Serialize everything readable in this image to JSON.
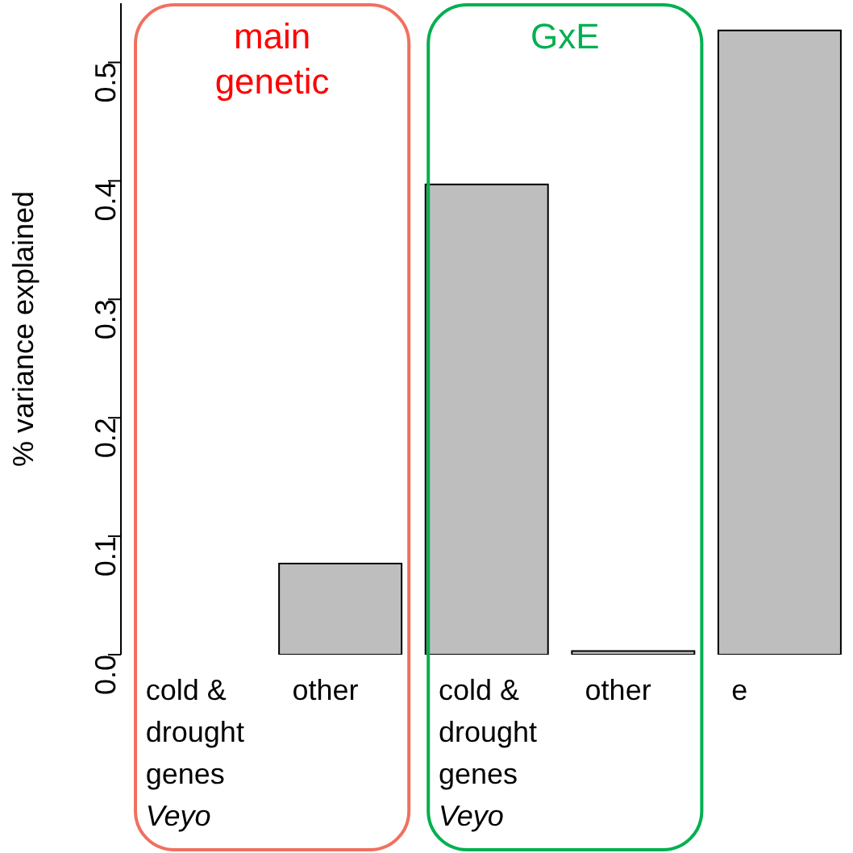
{
  "chart_data": {
    "type": "bar",
    "ylabel": "% variance explained",
    "categories": [
      "cold &\ndrought\ngenes\nVeyo",
      "other",
      "cold &\ndrought\ngenes\nVeyo",
      "other",
      "e"
    ],
    "values": [
      0.0,
      0.077,
      0.397,
      0.003,
      0.527
    ],
    "color": "#bebebe",
    "ylim": [
      0,
      0.55
    ],
    "yticks": [
      {
        "value": 0,
        "label": "0.0"
      },
      0.1,
      0.2,
      0.3,
      0.4,
      0.5
    ],
    "annotations": [
      "main genetic",
      "GxE"
    ]
  }
}
